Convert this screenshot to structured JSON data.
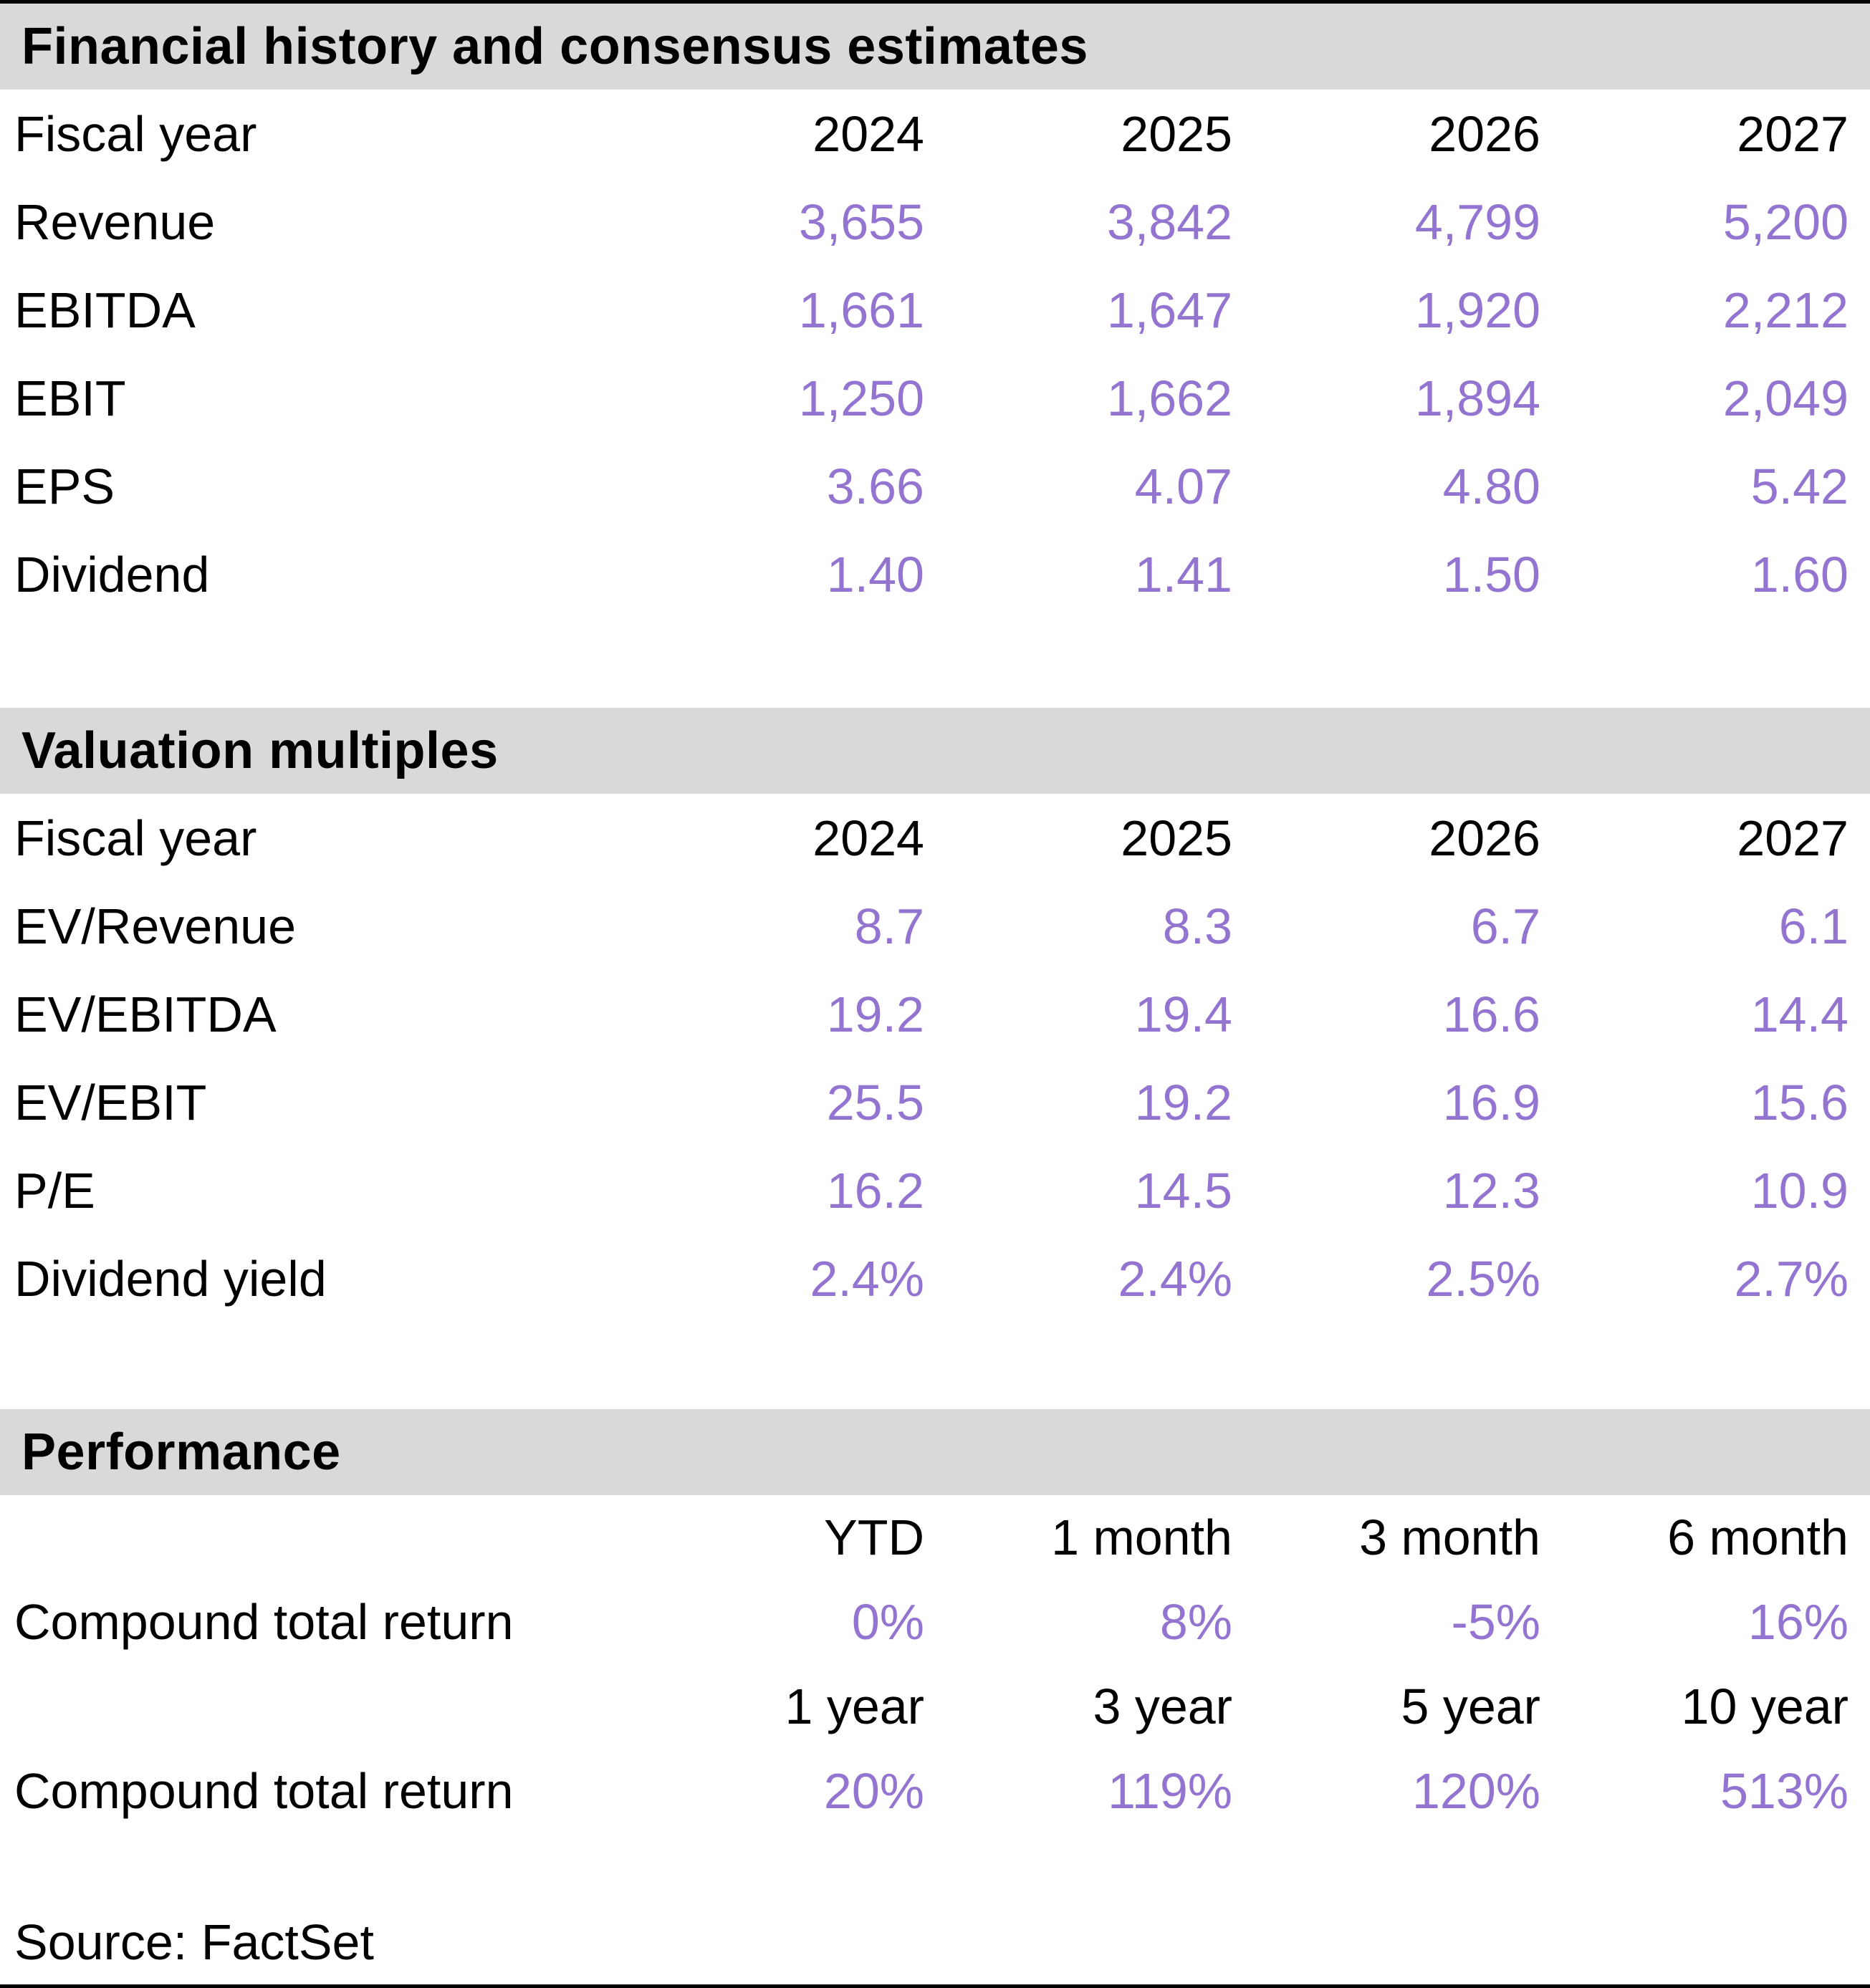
{
  "colors": {
    "accent_purple": "#9474D1",
    "band_gray": "#D9D9D9",
    "rule_black": "#000000"
  },
  "sections": {
    "financial": {
      "title": "Financial history and consensus estimates",
      "header_label": "Fiscal year",
      "columns": [
        "2024",
        "2025",
        "2026",
        "2027"
      ],
      "rows": [
        {
          "label": "Revenue",
          "values": [
            "3,655",
            "3,842",
            "4,799",
            "5,200"
          ]
        },
        {
          "label": "EBITDA",
          "values": [
            "1,661",
            "1,647",
            "1,920",
            "2,212"
          ]
        },
        {
          "label": "EBIT",
          "values": [
            "1,250",
            "1,662",
            "1,894",
            "2,049"
          ]
        },
        {
          "label": "EPS",
          "values": [
            "3.66",
            "4.07",
            "4.80",
            "5.42"
          ]
        },
        {
          "label": "Dividend",
          "values": [
            "1.40",
            "1.41",
            "1.50",
            "1.60"
          ]
        }
      ]
    },
    "valuation": {
      "title": "Valuation multiples",
      "header_label": "Fiscal year",
      "columns": [
        "2024",
        "2025",
        "2026",
        "2027"
      ],
      "rows": [
        {
          "label": "EV/Revenue",
          "values": [
            "8.7",
            "8.3",
            "6.7",
            "6.1"
          ]
        },
        {
          "label": "EV/EBITDA",
          "values": [
            "19.2",
            "19.4",
            "16.6",
            "14.4"
          ]
        },
        {
          "label": "EV/EBIT",
          "values": [
            "25.5",
            "19.2",
            "16.9",
            "15.6"
          ]
        },
        {
          "label": "P/E",
          "values": [
            "16.2",
            "14.5",
            "12.3",
            "10.9"
          ]
        },
        {
          "label": "Dividend yield",
          "values": [
            "2.4%",
            "2.4%",
            "2.5%",
            "2.7%"
          ]
        }
      ]
    },
    "performance": {
      "title": "Performance",
      "groups": [
        {
          "columns": [
            "YTD",
            "1 month",
            "3 month",
            "6 month"
          ],
          "row": {
            "label": "Compound total return",
            "values": [
              "0%",
              "8%",
              "-5%",
              "16%"
            ]
          }
        },
        {
          "columns": [
            "1 year",
            "3 year",
            "5 year",
            "10 year"
          ],
          "row": {
            "label": "Compound total return",
            "values": [
              "20%",
              "119%",
              "120%",
              "513%"
            ]
          }
        }
      ]
    }
  },
  "source_line": "Source: FactSet"
}
